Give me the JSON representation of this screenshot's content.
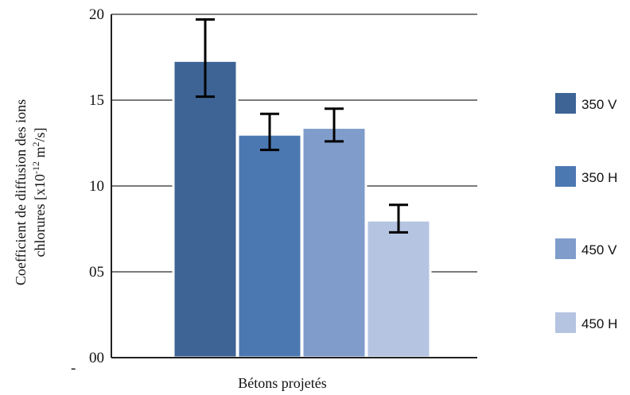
{
  "chart_data": {
    "type": "bar",
    "xlabel": "Bétons projetés",
    "ylabel_line1": "Coefficient de diffusion des ions",
    "ylabel_line2_prefix": "chlorures [x10",
    "ylabel_exp": "-12",
    "ylabel_unit": " m",
    "ylabel_unit_exp": "2",
    "ylabel_suffix": "/s]",
    "ylim": [
      0,
      20
    ],
    "yticks": [
      {
        "value": 0,
        "label": "00"
      },
      {
        "value": 5,
        "label": "05"
      },
      {
        "value": 10,
        "label": "10"
      },
      {
        "value": 15,
        "label": "15"
      },
      {
        "value": 20,
        "label": "20"
      }
    ],
    "axis_marker": "-",
    "grid": true,
    "legend_position": "right",
    "series": [
      {
        "name": "350 V",
        "value": 17.3,
        "err_low": 15.2,
        "err_high": 19.7,
        "color": "#3e6496"
      },
      {
        "name": "350 H",
        "value": 13.0,
        "err_low": 12.1,
        "err_high": 14.2,
        "color": "#4c78b2"
      },
      {
        "name": "450 V",
        "value": 13.4,
        "err_low": 12.6,
        "err_high": 14.5,
        "color": "#7f9ccb"
      },
      {
        "name": "450 H",
        "value": 8.0,
        "err_low": 7.3,
        "err_high": 8.9,
        "color": "#b5c4e1"
      }
    ]
  }
}
